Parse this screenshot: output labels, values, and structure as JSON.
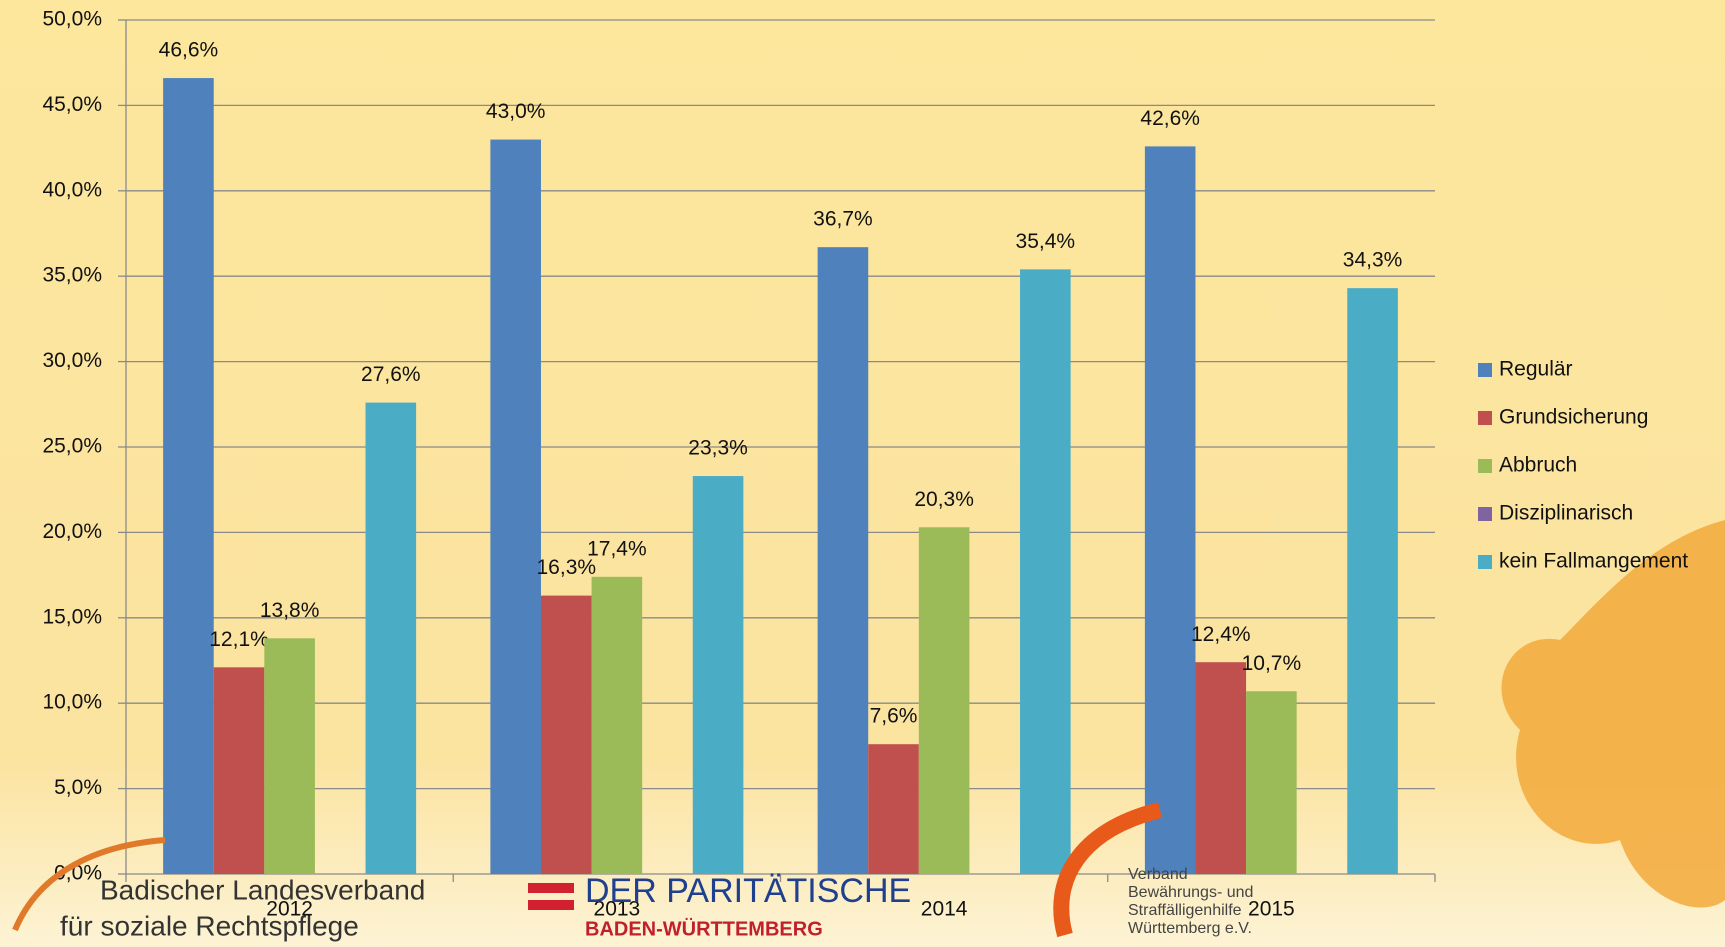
{
  "chart_data": {
    "type": "bar",
    "categories": [
      "2012",
      "2013",
      "2014",
      "2015"
    ],
    "series": [
      {
        "name": "Regulär",
        "color": "#4f81bd",
        "values": [
          46.6,
          43.0,
          36.7,
          42.6
        ],
        "value_labels": [
          "46,6%",
          "43,0%",
          "36,7%",
          "42,6%"
        ]
      },
      {
        "name": "Grundsicherung",
        "color": "#c0504d",
        "values": [
          12.1,
          16.3,
          7.6,
          12.4
        ],
        "value_labels": [
          "12,1%",
          "16,3%",
          "7,6%",
          "12,4%"
        ]
      },
      {
        "name": "Abbruch",
        "color": "#9bbb59",
        "values": [
          13.8,
          17.4,
          20.3,
          10.7
        ],
        "value_labels": [
          "13,8%",
          "17,4%",
          "20,3%",
          "10,7%"
        ]
      },
      {
        "name": "Disziplinarisch",
        "color": "#8064a2",
        "values": [
          null,
          null,
          null,
          null
        ],
        "value_labels": [
          null,
          null,
          null,
          null
        ]
      },
      {
        "name": "kein Fallmangement",
        "color": "#4bacc6",
        "values": [
          27.6,
          23.3,
          35.4,
          34.3
        ],
        "value_labels": [
          "27,6%",
          "23,3%",
          "35,4%",
          "34,3%"
        ]
      }
    ],
    "ylim": [
      0,
      50
    ],
    "yticks": [
      {
        "value": 0,
        "label": "0,0%"
      },
      {
        "value": 5,
        "label": "5,0%"
      },
      {
        "value": 10,
        "label": "10,0%"
      },
      {
        "value": 15,
        "label": "15,0%"
      },
      {
        "value": 20,
        "label": "20,0%"
      },
      {
        "value": 25,
        "label": "25,0%"
      },
      {
        "value": 30,
        "label": "30,0%"
      },
      {
        "value": 35,
        "label": "35,0%"
      },
      {
        "value": 40,
        "label": "40,0%"
      },
      {
        "value": 45,
        "label": "45,0%"
      },
      {
        "value": 50,
        "label": "50,0%"
      }
    ],
    "grid": true,
    "legend": "right"
  },
  "logos": {
    "left": [
      "Badischer Landesverband",
      "für soziale Rechtspflege"
    ],
    "middle": [
      "DER PARITÄTISCHE",
      "BADEN-WÜRTTEMBERG"
    ],
    "right": [
      "Verband",
      "Bewährungs- und",
      "Straffälligenhilfe",
      "Württemberg e.V."
    ]
  }
}
